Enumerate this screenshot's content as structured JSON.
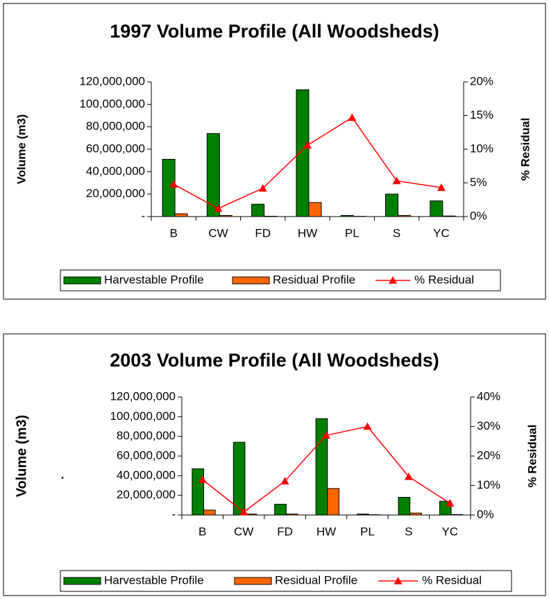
{
  "chart_data": [
    {
      "type": "bar",
      "title": "1997 Volume Profile (All Woodsheds)",
      "y_label": "Volume (m3)",
      "y2_label": "% Residual",
      "categories": [
        "B",
        "CW",
        "FD",
        "HW",
        "PL",
        "S",
        "YC"
      ],
      "series": [
        {
          "name": "Harvestable Profile",
          "color": "#008000",
          "values": [
            51000000,
            74000000,
            11000000,
            113000000,
            1000000,
            20000000,
            14000000
          ]
        },
        {
          "name": "Residual Profile",
          "color": "#ff6600",
          "values": [
            2500000,
            1000000,
            300000,
            12500000,
            200000,
            1000000,
            500000
          ]
        },
        {
          "name": "% Residual",
          "type": "line",
          "axis": "y2",
          "color": "#ff0000",
          "values": [
            4.8,
            1.2,
            4.2,
            10.6,
            14.7,
            5.3,
            4.3
          ]
        }
      ],
      "ylim": [
        0,
        120000000
      ],
      "yticks": [
        {
          "value": 0,
          "label": "-"
        },
        {
          "value": 20000000,
          "label": "20,000,000"
        },
        {
          "value": 40000000,
          "label": "40,000,000"
        },
        {
          "value": 60000000,
          "label": "60,000,000"
        },
        {
          "value": 80000000,
          "label": "80,000,000"
        },
        {
          "value": 100000000,
          "label": "100,000,000"
        },
        {
          "value": 120000000,
          "label": "120,000,000"
        }
      ],
      "y2lim": [
        0,
        20
      ],
      "y2ticks": [
        {
          "value": 0,
          "label": "0%"
        },
        {
          "value": 5,
          "label": "5%"
        },
        {
          "value": 10,
          "label": "10%"
        },
        {
          "value": 15,
          "label": "15%"
        },
        {
          "value": 20,
          "label": "20%"
        }
      ],
      "legend": "bottom"
    },
    {
      "type": "bar",
      "title": "2003 Volume Profile (All Woodsheds)",
      "y_label": "Volume (m3)",
      "y2_label": "% Residual",
      "annotation": ".",
      "categories": [
        "B",
        "CW",
        "FD",
        "HW",
        "PL",
        "S",
        "YC"
      ],
      "series": [
        {
          "name": "Harvestable Profile",
          "color": "#008000",
          "values": [
            47000000,
            74000000,
            11000000,
            98000000,
            1000000,
            18000000,
            14000000
          ]
        },
        {
          "name": "Residual Profile",
          "color": "#ff6600",
          "values": [
            5000000,
            1000000,
            1000000,
            27000000,
            300000,
            2000000,
            500000
          ]
        },
        {
          "name": "% Residual",
          "type": "line",
          "axis": "y2",
          "color": "#ff0000",
          "values": [
            12,
            1,
            11.5,
            27,
            30,
            13,
            4
          ]
        }
      ],
      "ylim": [
        0,
        120000000
      ],
      "yticks": [
        {
          "value": 0,
          "label": "-"
        },
        {
          "value": 20000000,
          "label": "20,000,000"
        },
        {
          "value": 40000000,
          "label": "40,000,000"
        },
        {
          "value": 60000000,
          "label": "60,000,000"
        },
        {
          "value": 80000000,
          "label": "80,000,000"
        },
        {
          "value": 100000000,
          "label": "100,000,000"
        },
        {
          "value": 120000000,
          "label": "120,000,000"
        }
      ],
      "y2lim": [
        0,
        40
      ],
      "y2ticks": [
        {
          "value": 0,
          "label": "0%"
        },
        {
          "value": 10,
          "label": "10%"
        },
        {
          "value": 20,
          "label": "20%"
        },
        {
          "value": 30,
          "label": "30%"
        },
        {
          "value": 40,
          "label": "40%"
        }
      ],
      "legend": "bottom"
    }
  ]
}
